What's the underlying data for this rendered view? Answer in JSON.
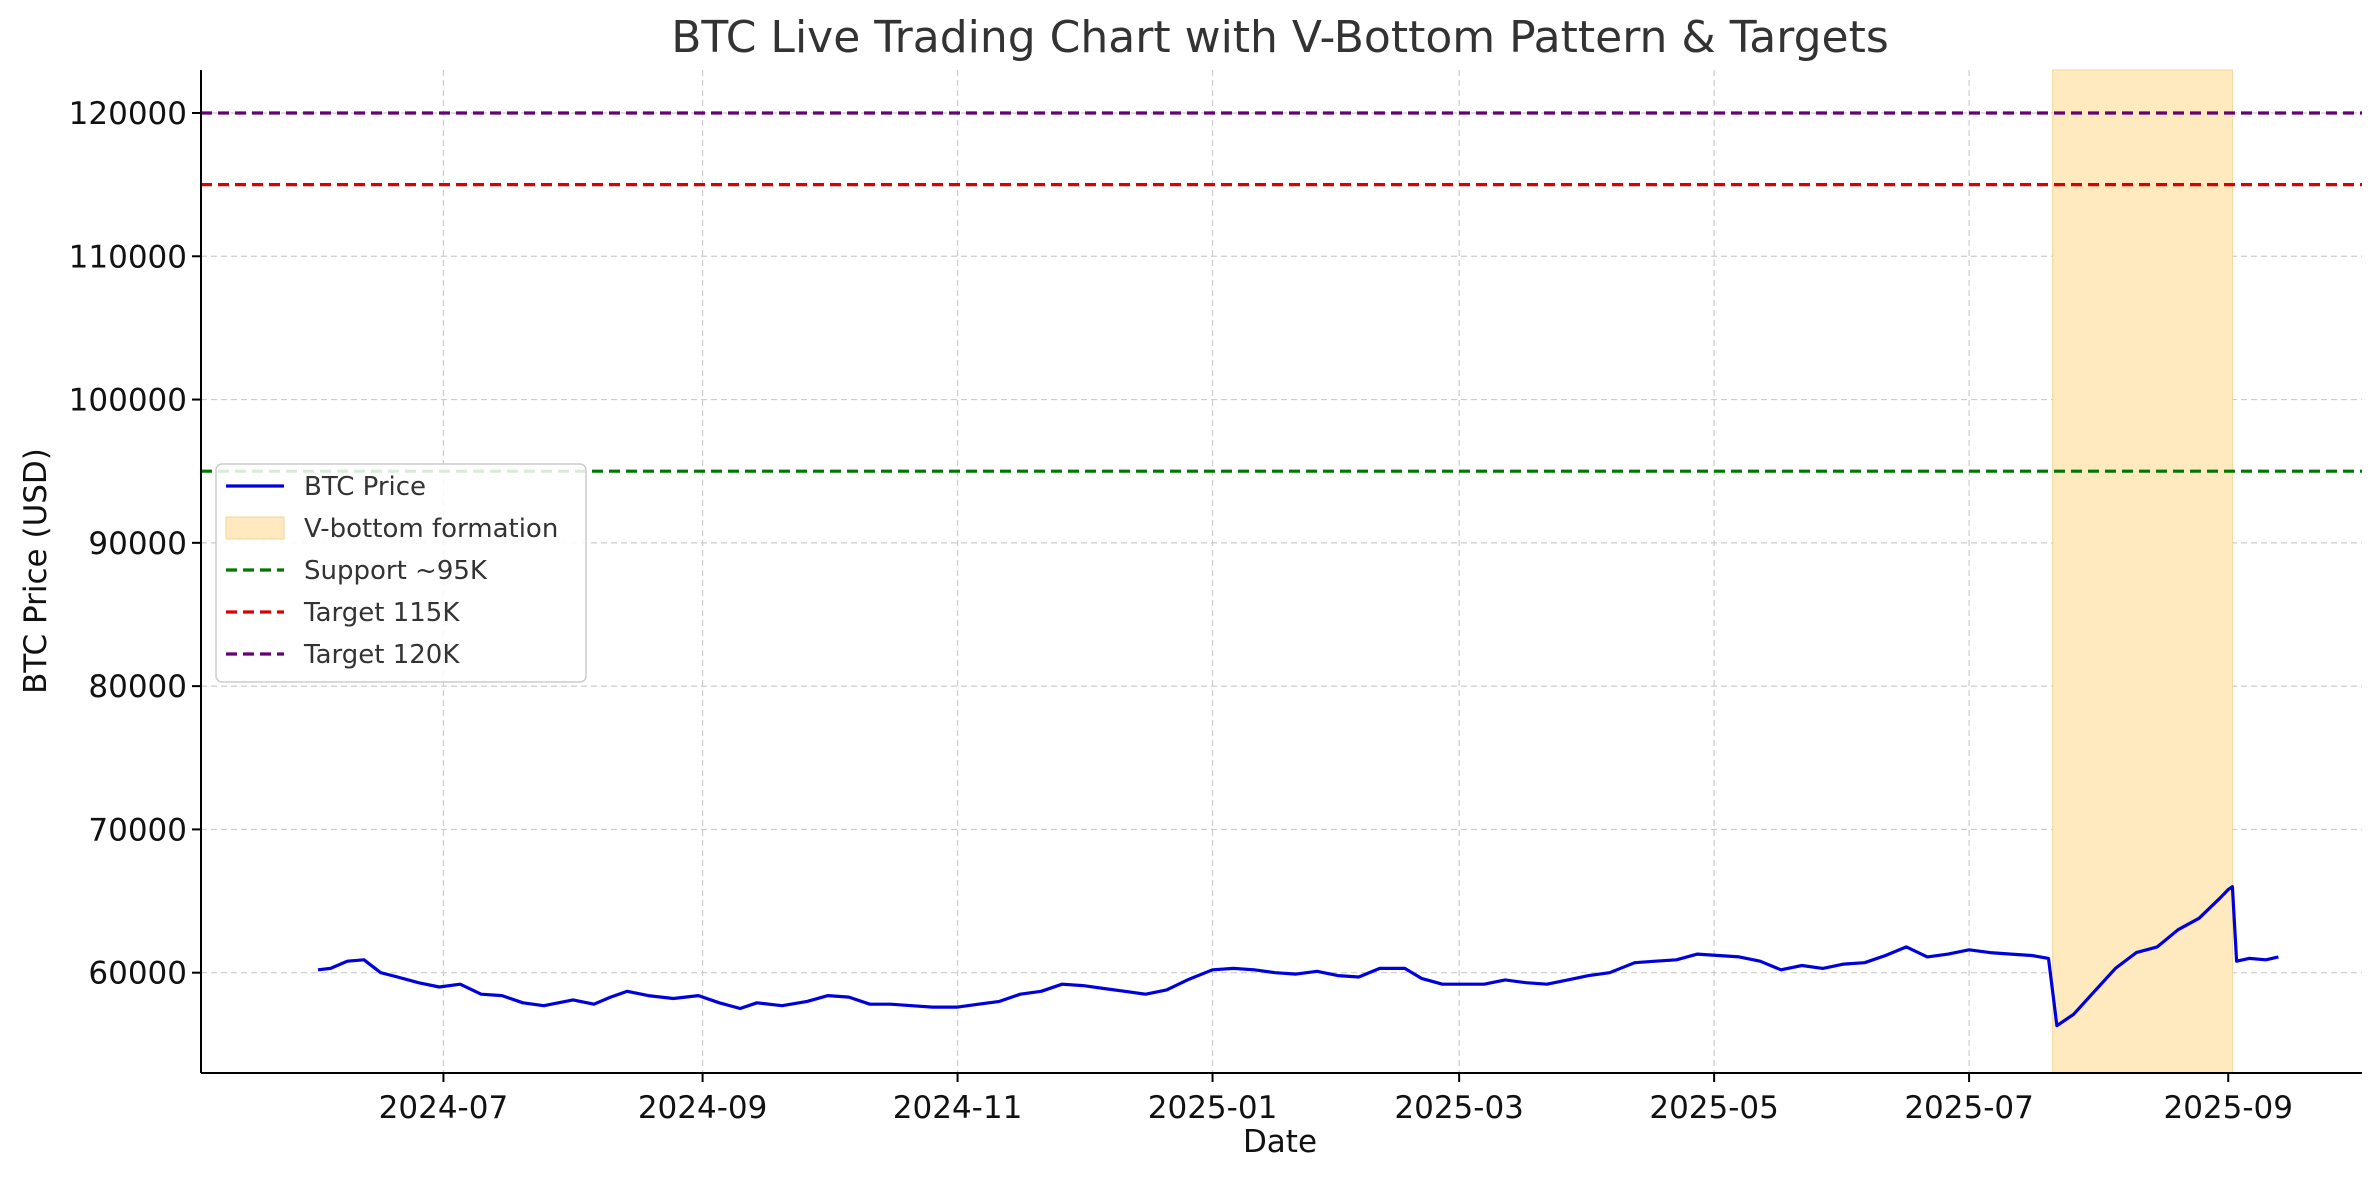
{
  "chart_data": {
    "type": "line",
    "title": "BTC Live Trading Chart with V-Bottom Pattern & Targets",
    "xlabel": "Date",
    "ylabel": "BTC Price (USD)",
    "x_range": [
      "2024-05-04",
      "2025-10-03"
    ],
    "ylim": [
      53000,
      123000
    ],
    "x_ticks": [
      "2024-07",
      "2024-09",
      "2024-11",
      "2025-01",
      "2025-03",
      "2025-05",
      "2025-07",
      "2025-09"
    ],
    "x_tick_dates": [
      "2024-07-01",
      "2024-09-01",
      "2024-11-01",
      "2025-01-01",
      "2025-03-01",
      "2025-05-01",
      "2025-07-01",
      "2025-09-01"
    ],
    "y_ticks": [
      60000,
      70000,
      80000,
      90000,
      100000,
      110000,
      120000
    ],
    "grid": true,
    "legend_position": "center-left",
    "series": [
      {
        "name": "BTC Price",
        "color": "#0000dd",
        "points": [
          [
            "2024-06-01",
            60200
          ],
          [
            "2024-06-04",
            60300
          ],
          [
            "2024-06-08",
            60800
          ],
          [
            "2024-06-12",
            60900
          ],
          [
            "2024-06-16",
            60000
          ],
          [
            "2024-06-20",
            59700
          ],
          [
            "2024-06-25",
            59300
          ],
          [
            "2024-06-30",
            59000
          ],
          [
            "2024-07-05",
            59200
          ],
          [
            "2024-07-10",
            58500
          ],
          [
            "2024-07-15",
            58400
          ],
          [
            "2024-07-20",
            57900
          ],
          [
            "2024-07-25",
            57700
          ],
          [
            "2024-08-01",
            58100
          ],
          [
            "2024-08-06",
            57800
          ],
          [
            "2024-08-10",
            58300
          ],
          [
            "2024-08-14",
            58700
          ],
          [
            "2024-08-19",
            58400
          ],
          [
            "2024-08-25",
            58200
          ],
          [
            "2024-08-31",
            58400
          ],
          [
            "2024-09-05",
            57900
          ],
          [
            "2024-09-10",
            57500
          ],
          [
            "2024-09-14",
            57900
          ],
          [
            "2024-09-20",
            57700
          ],
          [
            "2024-09-26",
            58000
          ],
          [
            "2024-10-01",
            58400
          ],
          [
            "2024-10-06",
            58300
          ],
          [
            "2024-10-11",
            57800
          ],
          [
            "2024-10-16",
            57800
          ],
          [
            "2024-10-21",
            57700
          ],
          [
            "2024-10-26",
            57600
          ],
          [
            "2024-11-01",
            57600
          ],
          [
            "2024-11-06",
            57800
          ],
          [
            "2024-11-11",
            58000
          ],
          [
            "2024-11-16",
            58500
          ],
          [
            "2024-11-21",
            58700
          ],
          [
            "2024-11-26",
            59200
          ],
          [
            "2024-12-01",
            59100
          ],
          [
            "2024-12-06",
            58900
          ],
          [
            "2024-12-11",
            58700
          ],
          [
            "2024-12-16",
            58500
          ],
          [
            "2024-12-21",
            58800
          ],
          [
            "2024-12-26",
            59500
          ],
          [
            "2025-01-01",
            60200
          ],
          [
            "2025-01-06",
            60300
          ],
          [
            "2025-01-11",
            60200
          ],
          [
            "2025-01-16",
            60000
          ],
          [
            "2025-01-21",
            59900
          ],
          [
            "2025-01-26",
            60100
          ],
          [
            "2025-01-31",
            59800
          ],
          [
            "2025-02-05",
            59700
          ],
          [
            "2025-02-10",
            60300
          ],
          [
            "2025-02-16",
            60300
          ],
          [
            "2025-02-20",
            59600
          ],
          [
            "2025-02-25",
            59200
          ],
          [
            "2025-03-02",
            59200
          ],
          [
            "2025-03-07",
            59200
          ],
          [
            "2025-03-12",
            59500
          ],
          [
            "2025-03-17",
            59300
          ],
          [
            "2025-03-22",
            59200
          ],
          [
            "2025-03-27",
            59500
          ],
          [
            "2025-04-01",
            59800
          ],
          [
            "2025-04-06",
            60000
          ],
          [
            "2025-04-12",
            60700
          ],
          [
            "2025-04-17",
            60800
          ],
          [
            "2025-04-22",
            60900
          ],
          [
            "2025-04-27",
            61300
          ],
          [
            "2025-05-02",
            61200
          ],
          [
            "2025-05-07",
            61100
          ],
          [
            "2025-05-12",
            60800
          ],
          [
            "2025-05-17",
            60200
          ],
          [
            "2025-05-22",
            60500
          ],
          [
            "2025-05-27",
            60300
          ],
          [
            "2025-06-01",
            60600
          ],
          [
            "2025-06-06",
            60700
          ],
          [
            "2025-06-11",
            61200
          ],
          [
            "2025-06-16",
            61800
          ],
          [
            "2025-06-21",
            61100
          ],
          [
            "2025-06-26",
            61300
          ],
          [
            "2025-07-01",
            61600
          ],
          [
            "2025-07-06",
            61400
          ],
          [
            "2025-07-11",
            61300
          ],
          [
            "2025-07-16",
            61200
          ],
          [
            "2025-07-20",
            61000
          ],
          [
            "2025-07-22",
            56300
          ],
          [
            "2025-07-26",
            57100
          ],
          [
            "2025-07-31",
            58700
          ],
          [
            "2025-08-05",
            60300
          ],
          [
            "2025-08-10",
            61400
          ],
          [
            "2025-08-15",
            61800
          ],
          [
            "2025-08-20",
            63000
          ],
          [
            "2025-08-25",
            63800
          ],
          [
            "2025-08-30",
            65200
          ],
          [
            "2025-09-01",
            65800
          ],
          [
            "2025-09-02",
            66000
          ],
          [
            "2025-09-03",
            60800
          ],
          [
            "2025-09-06",
            61000
          ],
          [
            "2025-09-10",
            60900
          ],
          [
            "2025-09-13",
            61100
          ]
        ]
      }
    ],
    "shaded_region": {
      "label": "V-bottom formation",
      "x_start": "2025-07-21",
      "x_end": "2025-09-02",
      "color": "#ffe9bf"
    },
    "hlines": [
      {
        "label": "Support ~95K",
        "y": 95000,
        "color": "#007700"
      },
      {
        "label": "Target 115K",
        "y": 115000,
        "color": "#dd0000"
      },
      {
        "label": "Target 120K",
        "y": 120000,
        "color": "#660077"
      }
    ]
  }
}
